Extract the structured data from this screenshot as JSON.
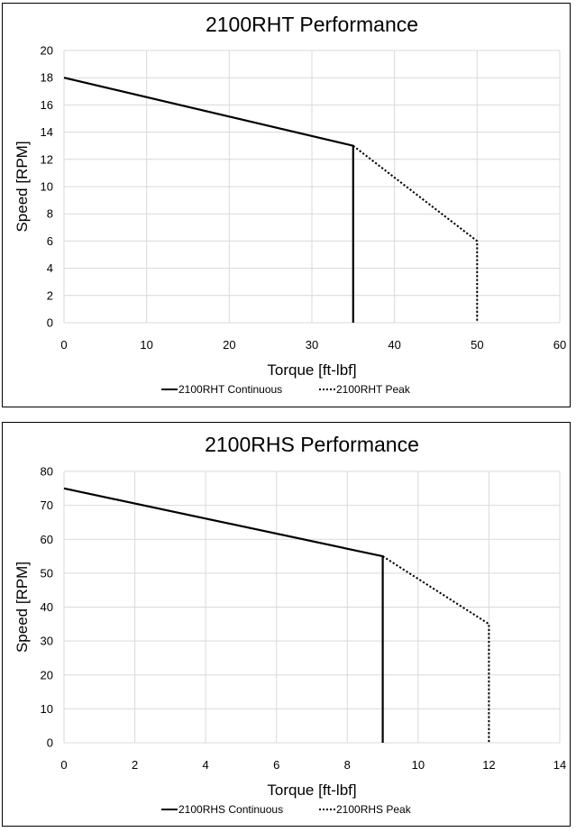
{
  "chart_data": [
    {
      "type": "line",
      "title": "2100RHT Performance",
      "xlabel": "Torque [ft-lbf]",
      "ylabel": "Speed  [RPM]",
      "xlim": [
        0,
        60
      ],
      "ylim": [
        0,
        20
      ],
      "xticks": [
        0,
        10,
        20,
        30,
        40,
        50,
        60
      ],
      "yticks": [
        0,
        2,
        4,
        6,
        8,
        10,
        12,
        14,
        16,
        18,
        20
      ],
      "grid": true,
      "legend_position": "bottom",
      "series": [
        {
          "name": "2100RHT Continuous",
          "style": "solid",
          "color": "#000000",
          "points": [
            [
              0,
              18
            ],
            [
              35,
              13
            ],
            [
              35,
              0
            ]
          ]
        },
        {
          "name": "2100RHT Peak",
          "style": "dotted",
          "color": "#000000",
          "points": [
            [
              35,
              13
            ],
            [
              50,
              6
            ],
            [
              50,
              0
            ]
          ]
        }
      ]
    },
    {
      "type": "line",
      "title": "2100RHS Performance",
      "xlabel": "Torque [ft-lbf]",
      "ylabel": "Speed  [RPM]",
      "xlim": [
        0,
        14
      ],
      "ylim": [
        0,
        80
      ],
      "xticks": [
        0,
        2,
        4,
        6,
        8,
        10,
        12,
        14
      ],
      "yticks": [
        0,
        10,
        20,
        30,
        40,
        50,
        60,
        70,
        80
      ],
      "grid": true,
      "legend_position": "bottom",
      "series": [
        {
          "name": "2100RHS Continuous",
          "style": "solid",
          "color": "#000000",
          "points": [
            [
              0,
              75
            ],
            [
              9,
              55
            ],
            [
              9,
              0
            ]
          ]
        },
        {
          "name": "2100RHS Peak",
          "style": "dotted",
          "color": "#000000",
          "points": [
            [
              9,
              55
            ],
            [
              12,
              35
            ],
            [
              12,
              0
            ]
          ]
        }
      ]
    }
  ]
}
